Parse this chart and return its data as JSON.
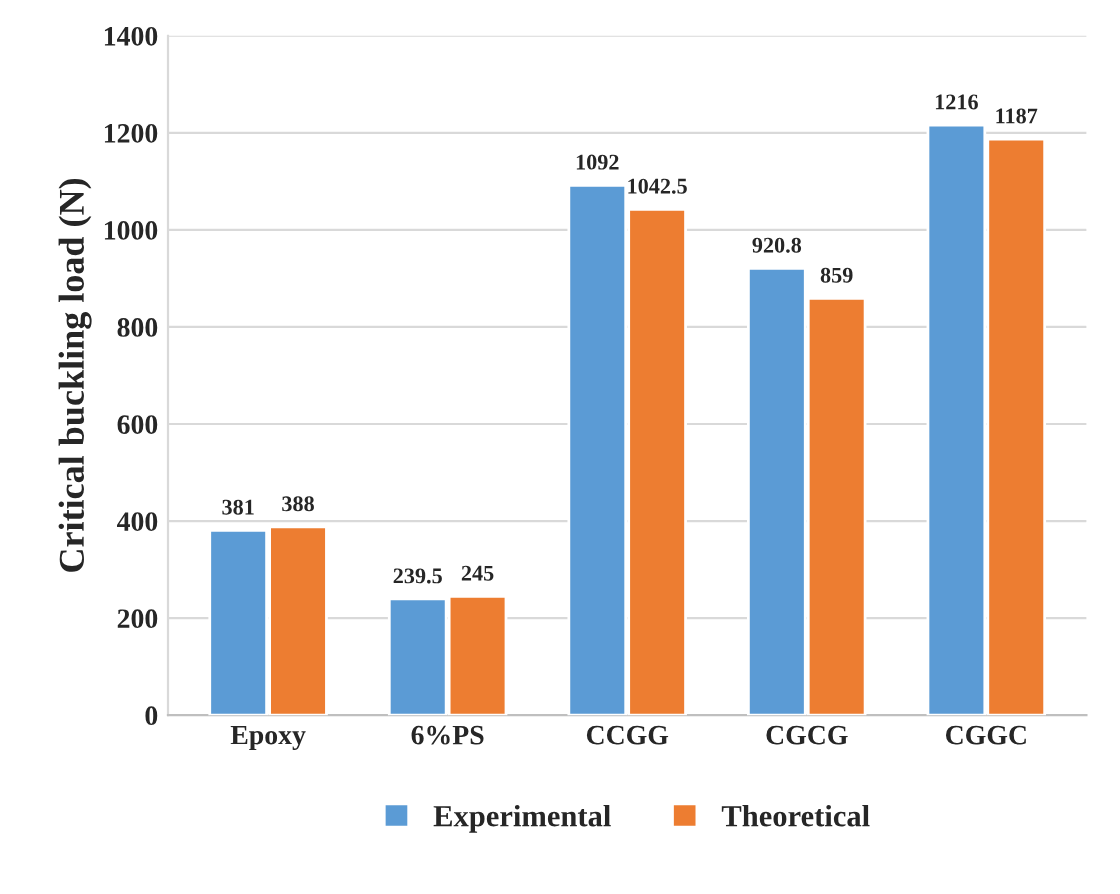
{
  "chart_data": {
    "type": "bar",
    "ylabel": "Critical buckling load (N)",
    "categories": [
      "Epoxy",
      "6%PS",
      "CCGG",
      "CGCG",
      "CGGC"
    ],
    "series": [
      {
        "name": "Experimental",
        "color": "#5b9bd5",
        "values": [
          381,
          239.5,
          1092,
          920.8,
          1216
        ]
      },
      {
        "name": "Theoretical",
        "color": "#ed7d31",
        "values": [
          388,
          245,
          1042.5,
          859,
          1187
        ]
      }
    ],
    "ylim": [
      0,
      1400
    ],
    "yticks": [
      0,
      200,
      400,
      600,
      800,
      1000,
      1200,
      1400
    ],
    "grid": "y",
    "legend": "bottom",
    "data_labels": true
  }
}
